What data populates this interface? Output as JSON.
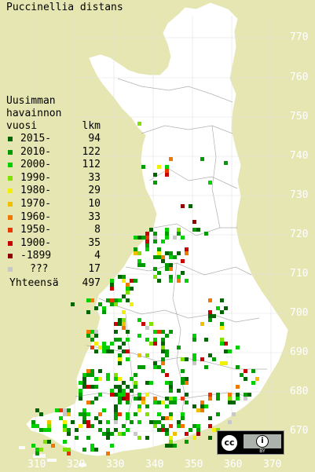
{
  "title": "Puccinellia distans",
  "colors": {
    "background": "#e6e6b2",
    "land": "#ffffff",
    "border": "#b0b0b0",
    "grid": "#e0e0e0",
    "tick": "#ffffff"
  },
  "axis": {
    "y_ticks": [
      "770",
      "760",
      "750",
      "740",
      "730",
      "720",
      "710",
      "700",
      "690",
      "680",
      "670"
    ],
    "x_ticks": [
      "310",
      "320",
      "330",
      "340",
      "350",
      "360",
      "370"
    ]
  },
  "legend": {
    "heading": [
      "Uusimman",
      "havainnon",
      "vuosi"
    ],
    "count_label": "lkm",
    "items": [
      {
        "label": "2015-",
        "count": "94",
        "color": "#006400"
      },
      {
        "label": "2010-",
        "count": "122",
        "color": "#009b00"
      },
      {
        "label": "2000-",
        "count": "112",
        "color": "#00d000"
      },
      {
        "label": "1990-",
        "count": "33",
        "color": "#80e000"
      },
      {
        "label": "1980-",
        "count": "29",
        "color": "#f0f000"
      },
      {
        "label": "1970-",
        "count": "10",
        "color": "#f0c000"
      },
      {
        "label": "1960-",
        "count": "33",
        "color": "#f07800"
      },
      {
        "label": "1950-",
        "count": "8",
        "color": "#e83800"
      },
      {
        "label": "1900-",
        "count": "35",
        "color": "#c80000"
      },
      {
        "label": "-1899",
        "count": "4",
        "color": "#900000"
      },
      {
        "label": "???",
        "count": "17",
        "color": "#c8c8c8"
      }
    ],
    "total_label": "Yhteensä",
    "total_count": "497"
  },
  "license": {
    "cc": "cc",
    "by": "BY",
    "icon": "creative-commons-by"
  }
}
